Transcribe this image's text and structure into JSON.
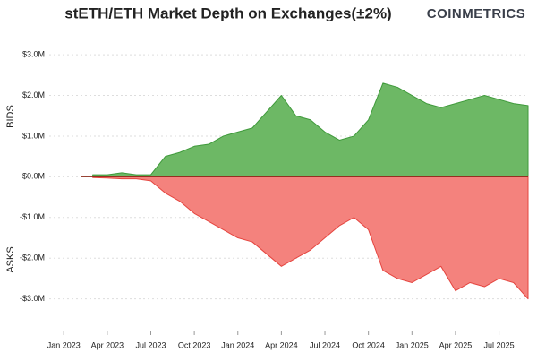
{
  "chart_data": {
    "type": "area",
    "title": "stETH/ETH Market Depth on Exchanges(±2%)",
    "brand": "COINMETRICS",
    "y_label_top": "BIDS",
    "y_label_bottom": "ASKS",
    "x": [
      "2023-03",
      "2023-04",
      "2023-05",
      "2023-06",
      "2023-07",
      "2023-08",
      "2023-09",
      "2023-10",
      "2023-11",
      "2023-12",
      "2024-01",
      "2024-02",
      "2024-03",
      "2024-04",
      "2024-05",
      "2024-06",
      "2024-07",
      "2024-08",
      "2024-09",
      "2024-10",
      "2024-11",
      "2024-12",
      "2025-01",
      "2025-02",
      "2025-03",
      "2025-04",
      "2025-05",
      "2025-06",
      "2025-07",
      "2025-08",
      "2025-09"
    ],
    "xlim": [
      "2022-12",
      "2025-09"
    ],
    "xticks": [
      {
        "value": "2023-01",
        "label": "Jan 2023"
      },
      {
        "value": "2023-04",
        "label": "Apr 2023"
      },
      {
        "value": "2023-07",
        "label": "Jul 2023"
      },
      {
        "value": "2023-10",
        "label": "Oct 2023"
      },
      {
        "value": "2024-01",
        "label": "Jan 2024"
      },
      {
        "value": "2024-04",
        "label": "Apr 2024"
      },
      {
        "value": "2024-07",
        "label": "Jul 2024"
      },
      {
        "value": "2024-10",
        "label": "Oct 2024"
      },
      {
        "value": "2025-01",
        "label": "Jan 2025"
      },
      {
        "value": "2025-04",
        "label": "Apr 2025"
      },
      {
        "value": "2025-07",
        "label": "Jul 2025"
      }
    ],
    "ylim": [
      -3800000,
      3200000
    ],
    "yticks": [
      {
        "value": 3000000,
        "label": "$3.0M"
      },
      {
        "value": 2000000,
        "label": "$2.0M"
      },
      {
        "value": 1000000,
        "label": "$1.0M"
      },
      {
        "value": 0,
        "label": "$0.0M"
      },
      {
        "value": -1000000,
        "label": "-$1.0M"
      },
      {
        "value": -2000000,
        "label": "-$2.0M"
      },
      {
        "value": -3000000,
        "label": "-$3.0M"
      }
    ],
    "grid": true,
    "series": [
      {
        "name": "Bids",
        "color": "#6db865",
        "line_color": "#3f9a3b",
        "values": [
          50000,
          50000,
          100000,
          50000,
          50000,
          500000,
          600000,
          750000,
          800000,
          1000000,
          1100000,
          1200000,
          1600000,
          2000000,
          1500000,
          1400000,
          1100000,
          900000,
          1000000,
          1400000,
          2300000,
          2200000,
          2000000,
          1800000,
          1700000,
          1800000,
          1900000,
          2000000,
          1900000,
          1800000,
          1750000
        ]
      },
      {
        "name": "Asks",
        "color": "#f4827d",
        "line_color": "#e5453f",
        "values": [
          -20000,
          -30000,
          -50000,
          -50000,
          -100000,
          -400000,
          -600000,
          -900000,
          -1100000,
          -1300000,
          -1500000,
          -1600000,
          -1900000,
          -2200000,
          -2000000,
          -1800000,
          -1500000,
          -1200000,
          -1000000,
          -1300000,
          -2300000,
          -2500000,
          -2600000,
          -2400000,
          -2200000,
          -2800000,
          -2600000,
          -2700000,
          -2500000,
          -2600000,
          -3000000
        ]
      }
    ]
  }
}
